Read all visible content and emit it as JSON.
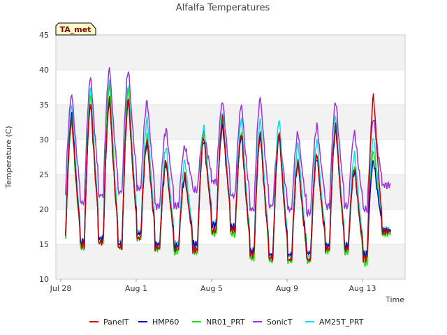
{
  "chart_data": {
    "type": "line",
    "title": "Alfalfa Temperatures",
    "xlabel": "Time",
    "ylabel": "Temperature (C)",
    "tag": "TA_met",
    "ylim": [
      10,
      45
    ],
    "yticks": [
      10,
      15,
      20,
      25,
      30,
      35,
      40,
      45
    ],
    "xlim": [
      "Jul 28",
      "Aug 15"
    ],
    "xticks": [
      "Jul 28",
      "Aug 1",
      "Aug 5",
      "Aug 9",
      "Aug 13"
    ],
    "grid": "horizontal bands",
    "legend_position": "bottom",
    "days": [
      "Jul 28",
      "Jul 29",
      "Jul 30",
      "Jul 31",
      "Aug 1",
      "Aug 2",
      "Aug 3",
      "Aug 4",
      "Aug 5",
      "Aug 6",
      "Aug 7",
      "Aug 8",
      "Aug 9",
      "Aug 10",
      "Aug 11",
      "Aug 12",
      "Aug 13",
      "Aug 14"
    ],
    "series": [
      {
        "name": "PanelT",
        "color": "#cc0000",
        "min": [
          15.8,
          14.9,
          15.3,
          14.6,
          15.9,
          14.5,
          14.3,
          14.2,
          17.0,
          17.0,
          13.5,
          13.0,
          12.8,
          12.8,
          14.3,
          14.3,
          13.0,
          16.8
        ],
        "max": [
          33.0,
          35.5,
          36.0,
          36.0,
          30.0,
          27.0,
          25.0,
          30.5,
          33.0,
          31.0,
          31.0,
          31.0,
          27.0,
          28.0,
          32.0,
          26.0,
          36.3,
          16.8
        ]
      },
      {
        "name": "HMP60",
        "color": "#0000cc",
        "min": [
          16.0,
          15.3,
          15.8,
          15.0,
          16.5,
          15.0,
          14.8,
          15.0,
          17.8,
          17.5,
          14.0,
          13.5,
          13.5,
          13.8,
          14.8,
          14.8,
          13.5,
          17.0
        ],
        "max": [
          33.5,
          35.0,
          35.5,
          35.5,
          29.5,
          26.5,
          24.5,
          30.0,
          32.0,
          30.5,
          30.5,
          30.5,
          26.5,
          27.5,
          31.5,
          25.5,
          27.0,
          17.0
        ]
      },
      {
        "name": "NR01_PRT",
        "color": "#00ee00",
        "min": [
          15.5,
          14.6,
          15.2,
          14.5,
          15.8,
          14.3,
          14.0,
          14.0,
          16.6,
          16.5,
          13.0,
          12.6,
          12.6,
          12.6,
          14.0,
          14.0,
          12.3,
          16.5
        ],
        "max": [
          32.5,
          36.5,
          38.0,
          37.5,
          30.5,
          27.0,
          25.0,
          31.0,
          33.5,
          31.0,
          31.0,
          31.0,
          27.0,
          28.0,
          32.0,
          26.0,
          28.5,
          16.5
        ]
      },
      {
        "name": "SonicT",
        "color": "#9933dd",
        "min": [
          22.5,
          21.0,
          22.0,
          22.5,
          23.0,
          20.5,
          20.5,
          22.8,
          24.0,
          22.0,
          20.0,
          20.5,
          20.0,
          19.5,
          20.5,
          20.5,
          20.0,
          23.5
        ],
        "max": [
          36.5,
          39.0,
          40.2,
          40.0,
          35.5,
          31.5,
          29.0,
          31.0,
          35.5,
          35.0,
          36.0,
          31.0,
          31.0,
          32.0,
          35.5,
          31.0,
          33.0,
          23.5
        ]
      },
      {
        "name": "AM25T_PRT",
        "color": "#00e5ee",
        "min": [
          16.5,
          15.5,
          16.0,
          15.5,
          16.8,
          15.0,
          15.0,
          15.0,
          18.0,
          17.5,
          14.0,
          13.5,
          13.3,
          13.3,
          14.8,
          14.8,
          13.8,
          17.0
        ],
        "max": [
          35.0,
          37.5,
          38.5,
          38.0,
          33.0,
          29.0,
          27.0,
          32.0,
          34.0,
          33.0,
          33.0,
          33.0,
          29.5,
          30.0,
          33.5,
          28.0,
          30.5,
          17.0
        ]
      }
    ]
  }
}
